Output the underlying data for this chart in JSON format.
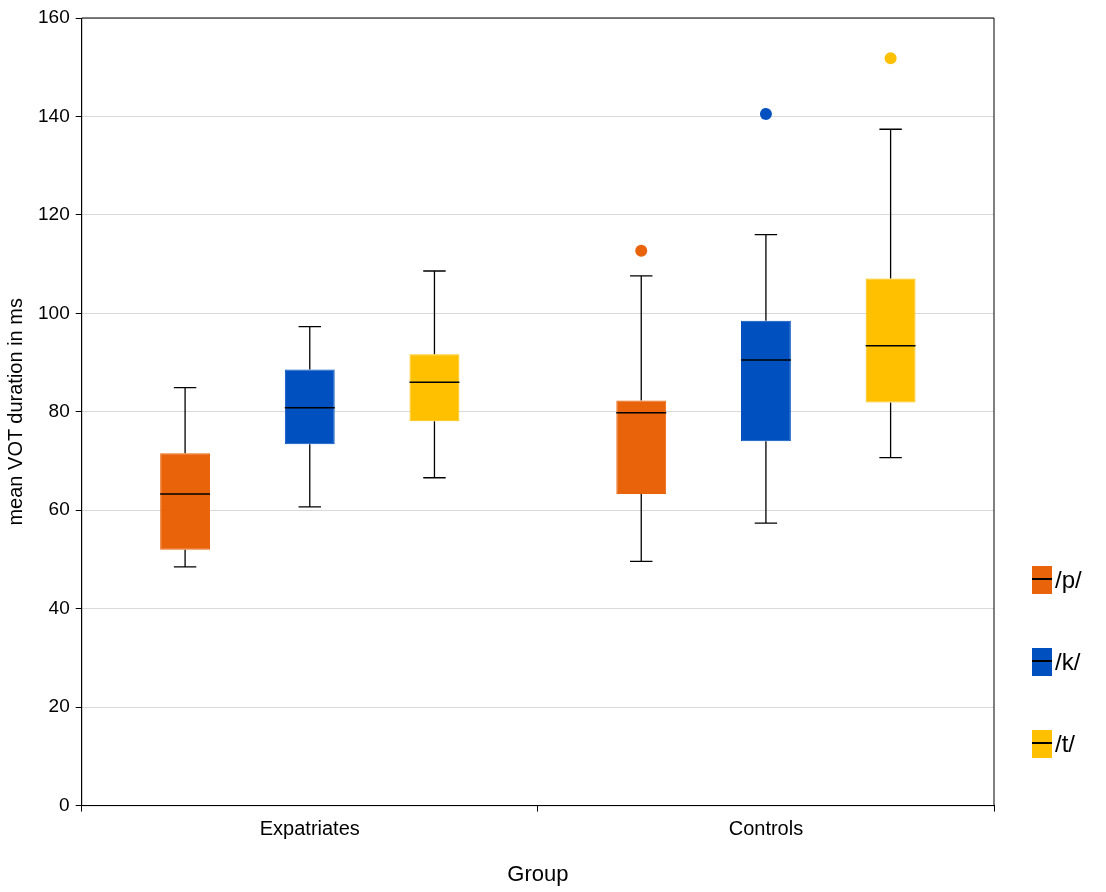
{
  "chart_data": {
    "type": "box",
    "xlabel": "Group",
    "ylabel": "mean VOT duration in ms",
    "categories": [
      "Expatriates",
      "Controls"
    ],
    "series": [
      {
        "name": "/p/",
        "color": "#e8630a",
        "boxes": [
          {
            "low": 48.5,
            "q1": 52,
            "median": 63.3,
            "q3": 71.6,
            "high": 84.9
          },
          {
            "low": 49.6,
            "q1": 63.3,
            "median": 79.8,
            "q3": 82.3,
            "high": 107.6,
            "outliers": [
              112.7
            ]
          }
        ]
      },
      {
        "name": "/k/",
        "color": "#0050c0",
        "boxes": [
          {
            "low": 60.7,
            "q1": 73.4,
            "median": 80.8,
            "q3": 88.6,
            "high": 97.3
          },
          {
            "low": 57.4,
            "q1": 74,
            "median": 90.5,
            "q3": 98.5,
            "high": 116,
            "outliers": [
              140.5
            ]
          }
        ]
      },
      {
        "name": "/t/",
        "color": "#ffc000",
        "boxes": [
          {
            "low": 66.6,
            "q1": 78.1,
            "median": 86,
            "q3": 91.7,
            "high": 108.6
          },
          {
            "low": 70.7,
            "q1": 81.9,
            "median": 93.4,
            "q3": 107.1,
            "high": 137.4,
            "outliers": [
              151.8
            ]
          }
        ]
      }
    ],
    "ylim": [
      0,
      160
    ],
    "yticks": [
      0,
      20,
      40,
      60,
      80,
      100,
      120,
      140,
      160
    ],
    "grid": "y",
    "legend": "right"
  }
}
